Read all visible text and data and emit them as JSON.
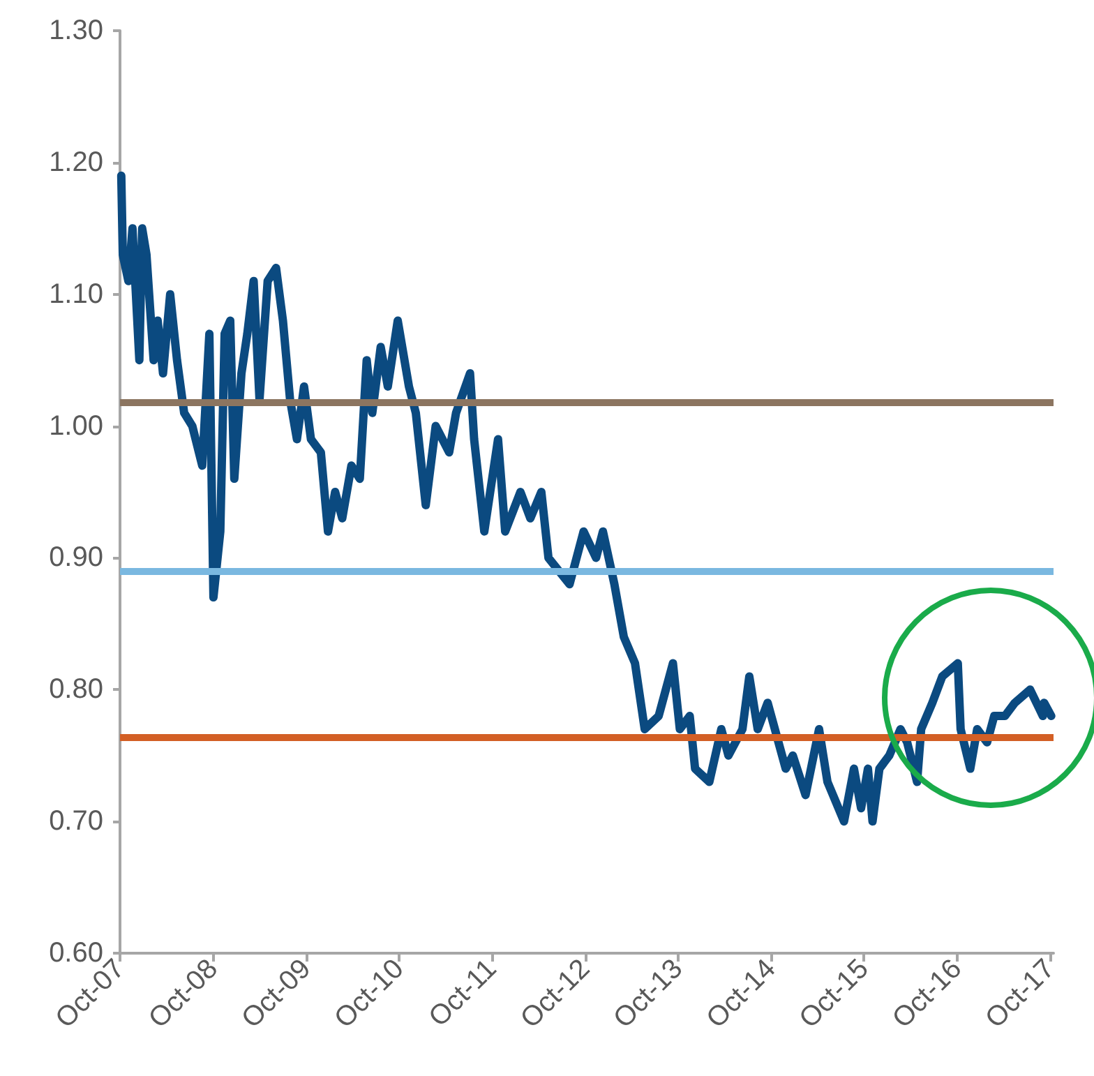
{
  "chart_data": {
    "type": "line",
    "grid": false,
    "marker": "none",
    "line_style": "solid",
    "x": [
      "2007-10-06",
      "2007-10-12",
      "2007-11-03",
      "2007-11-19",
      "2007-12-16",
      "2007-12-27",
      "2008-01-13",
      "2008-02-10",
      "2008-02-26",
      "2008-03-18",
      "2008-04-15",
      "2008-05-12",
      "2008-06-09",
      "2008-07-11",
      "2008-08-19",
      "2008-09-16",
      "2008-10-02",
      "2008-10-29",
      "2008-11-15",
      "2008-12-07",
      "2008-12-23",
      "2009-01-20",
      "2009-02-12",
      "2009-03-09",
      "2009-04-01",
      "2009-05-03",
      "2009-06-05",
      "2009-07-02",
      "2009-07-30",
      "2009-08-26",
      "2009-09-23",
      "2009-10-20",
      "2009-11-28",
      "2009-12-26",
      "2010-01-23",
      "2010-02-20",
      "2010-03-28",
      "2010-04-30",
      "2010-05-27",
      "2010-06-18",
      "2010-07-21",
      "2010-08-18",
      "2010-09-26",
      "2010-11-09",
      "2010-12-06",
      "2011-01-14",
      "2011-02-22",
      "2011-04-16",
      "2011-05-13",
      "2011-07-07",
      "2011-07-23",
      "2011-09-01",
      "2011-10-25",
      "2011-11-22",
      "2012-01-21",
      "2012-02-29",
      "2012-04-12",
      "2012-05-10",
      "2012-08-01",
      "2012-09-25",
      "2012-11-13",
      "2012-12-10",
      "2013-01-24",
      "2013-03-02",
      "2013-04-15",
      "2013-05-23",
      "2013-07-17",
      "2013-09-11",
      "2013-10-08",
      "2013-11-16",
      "2013-12-07",
      "2014-02-01",
      "2014-03-20",
      "2014-04-17",
      "2014-06-11",
      "2014-07-08",
      "2014-08-10",
      "2014-09-18",
      "2014-11-28",
      "2014-12-26",
      "2015-02-14",
      "2015-04-08",
      "2015-05-11",
      "2015-07-15",
      "2015-08-23",
      "2015-09-20",
      "2015-10-17",
      "2015-11-04",
      "2015-12-01",
      "2016-01-09",
      "2016-02-22",
      "2016-03-19",
      "2016-04-27",
      "2016-05-13",
      "2016-06-26",
      "2016-08-04",
      "2016-10-04",
      "2016-10-15",
      "2016-11-22",
      "2016-12-19",
      "2017-01-27",
      "2017-02-24",
      "2017-04-07",
      "2017-05-16",
      "2017-07-15",
      "2017-09-03",
      "2017-09-08",
      "2017-10-06"
    ],
    "series": [
      {
        "color": "#0b4a80",
        "values": [
          1.19,
          1.13,
          1.11,
          1.15,
          1.05,
          1.15,
          1.13,
          1.05,
          1.08,
          1.04,
          1.1,
          1.05,
          1.01,
          1.0,
          0.97,
          1.07,
          0.87,
          0.92,
          1.07,
          1.08,
          0.96,
          1.04,
          1.07,
          1.11,
          1.02,
          1.11,
          1.12,
          1.08,
          1.02,
          0.99,
          1.03,
          0.99,
          0.98,
          0.92,
          0.95,
          0.93,
          0.97,
          0.96,
          1.05,
          1.01,
          1.06,
          1.03,
          1.08,
          1.03,
          1.01,
          0.94,
          1.0,
          0.98,
          1.01,
          1.04,
          0.99,
          0.92,
          0.99,
          0.92,
          0.95,
          0.93,
          0.95,
          0.9,
          0.88,
          0.92,
          0.9,
          0.92,
          0.88,
          0.84,
          0.82,
          0.77,
          0.78,
          0.82,
          0.77,
          0.78,
          0.74,
          0.73,
          0.77,
          0.75,
          0.77,
          0.81,
          0.77,
          0.79,
          0.74,
          0.75,
          0.72,
          0.77,
          0.73,
          0.7,
          0.74,
          0.71,
          0.74,
          0.7,
          0.74,
          0.75,
          0.77,
          0.76,
          0.73,
          0.77,
          0.79,
          0.81,
          0.82,
          0.77,
          0.74,
          0.77,
          0.76,
          0.78,
          0.78,
          0.79,
          0.8,
          0.78,
          0.79,
          0.78
        ]
      }
    ],
    "ref_lines": [
      {
        "axis": "y",
        "value": 1.018,
        "color": "#8c7560"
      },
      {
        "axis": "y",
        "value": 0.89,
        "color": "#7ab8e0"
      },
      {
        "axis": "y",
        "value": 0.764,
        "color": "#d35f25"
      }
    ],
    "xlim": [
      "2007-10-01",
      "2017-10-15"
    ],
    "xticks": [
      {
        "value": "2007-10-01",
        "label": "Oct-07"
      },
      {
        "value": "2008-10-01",
        "label": "Oct-08"
      },
      {
        "value": "2009-10-01",
        "label": "Oct-09"
      },
      {
        "value": "2010-10-01",
        "label": "Oct-10"
      },
      {
        "value": "2011-10-01",
        "label": "Oct-11"
      },
      {
        "value": "2012-10-01",
        "label": "Oct-12"
      },
      {
        "value": "2013-10-01",
        "label": "Oct-13"
      },
      {
        "value": "2014-10-01",
        "label": "Oct-14"
      },
      {
        "value": "2015-10-01",
        "label": "Oct-15"
      },
      {
        "value": "2016-10-01",
        "label": "Oct-16"
      },
      {
        "value": "2017-10-01",
        "label": "Oct-17"
      }
    ],
    "ylim": [
      0.6,
      1.3
    ],
    "yticks": [
      {
        "value": 0.6,
        "label": "0.60"
      },
      {
        "value": 0.7,
        "label": "0.70"
      },
      {
        "value": 0.8,
        "label": "0.80"
      },
      {
        "value": 0.9,
        "label": "0.90"
      },
      {
        "value": 1.0,
        "label": "1.00"
      },
      {
        "value": 1.1,
        "label": "1.10"
      },
      {
        "value": 1.2,
        "label": "1.20"
      },
      {
        "value": 1.3,
        "label": "1.30"
      }
    ]
  }
}
